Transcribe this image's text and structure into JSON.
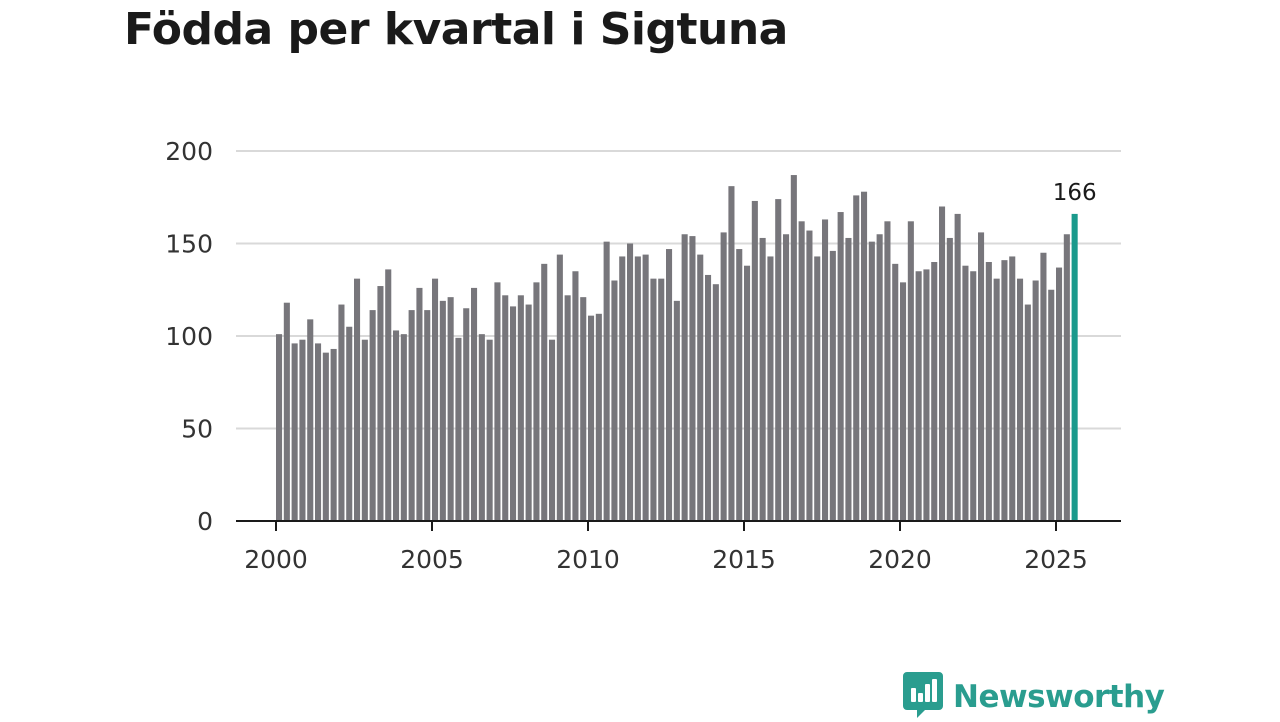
{
  "title": "Födda per kvartal i Sigtuna",
  "brand": {
    "name": "Newsworthy",
    "icon": "bar-chart-speech-icon",
    "color": "#2a9d8f"
  },
  "chart_data": {
    "type": "bar",
    "title": "Födda per kvartal i Sigtuna",
    "xlabel": "",
    "ylabel": "",
    "ylim": [
      0,
      200
    ],
    "y_ticks": [
      "0",
      "50",
      "100",
      "150",
      "200"
    ],
    "x_ticks": [
      "2000",
      "2005",
      "2010",
      "2015",
      "2020",
      "2025"
    ],
    "grid": true,
    "bar_color": "#77767b",
    "highlight_color": "#1a9a8c",
    "annotation": "166",
    "x_start": 2000,
    "values": [
      101,
      118,
      96,
      98,
      109,
      96,
      91,
      93,
      117,
      105,
      131,
      98,
      114,
      127,
      136,
      103,
      101,
      114,
      126,
      114,
      131,
      119,
      121,
      99,
      115,
      126,
      101,
      98,
      129,
      122,
      116,
      122,
      117,
      129,
      139,
      98,
      144,
      122,
      135,
      121,
      111,
      112,
      151,
      130,
      143,
      150,
      143,
      144,
      131,
      131,
      147,
      119,
      155,
      154,
      144,
      133,
      128,
      156,
      181,
      147,
      138,
      173,
      153,
      143,
      174,
      155,
      187,
      162,
      157,
      143,
      163,
      146,
      167,
      153,
      176,
      178,
      151,
      155,
      162,
      139,
      129,
      162,
      135,
      136,
      140,
      170,
      153,
      166,
      138,
      135,
      156,
      140,
      131,
      141,
      143,
      131,
      117,
      130,
      145,
      125,
      137,
      155,
      166
    ]
  }
}
